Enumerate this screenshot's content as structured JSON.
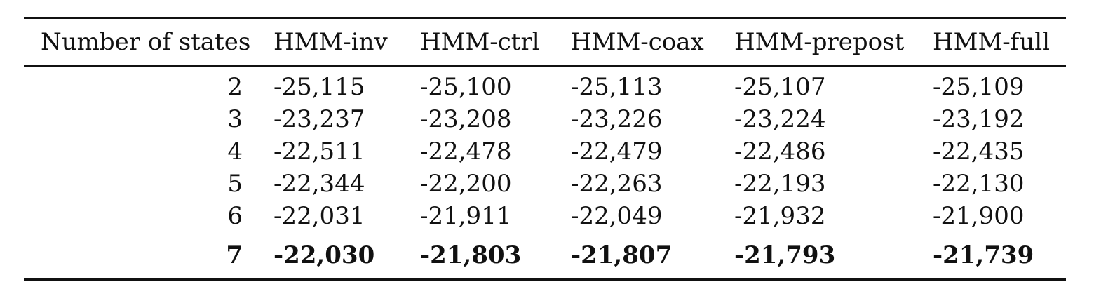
{
  "table": {
    "columns": [
      "Number of states",
      "HMM-inv",
      "HMM-ctrl",
      "HMM-coax",
      "HMM-prepost",
      "HMM-full"
    ],
    "rows": [
      {
        "states": "2",
        "values": [
          "-25,115",
          "-25,100",
          "-25,113",
          "-25,107",
          "-25,109"
        ]
      },
      {
        "states": "3",
        "values": [
          "-23,237",
          "-23,208",
          "-23,226",
          "-23,224",
          "-23,192"
        ]
      },
      {
        "states": "4",
        "values": [
          "-22,511",
          "-22,478",
          "-22,479",
          "-22,486",
          "-22,435"
        ]
      },
      {
        "states": "5",
        "values": [
          "-22,344",
          "-22,200",
          "-22,263",
          "-22,193",
          "-22,130"
        ]
      },
      {
        "states": "6",
        "values": [
          "-22,031",
          "-21,911",
          "-22,049",
          "-21,932",
          "-21,900"
        ]
      },
      {
        "states": "7",
        "values": [
          "-22,030",
          "-21,803",
          "-21,807",
          "-21,793",
          "-21,739"
        ],
        "bold": true
      }
    ]
  }
}
